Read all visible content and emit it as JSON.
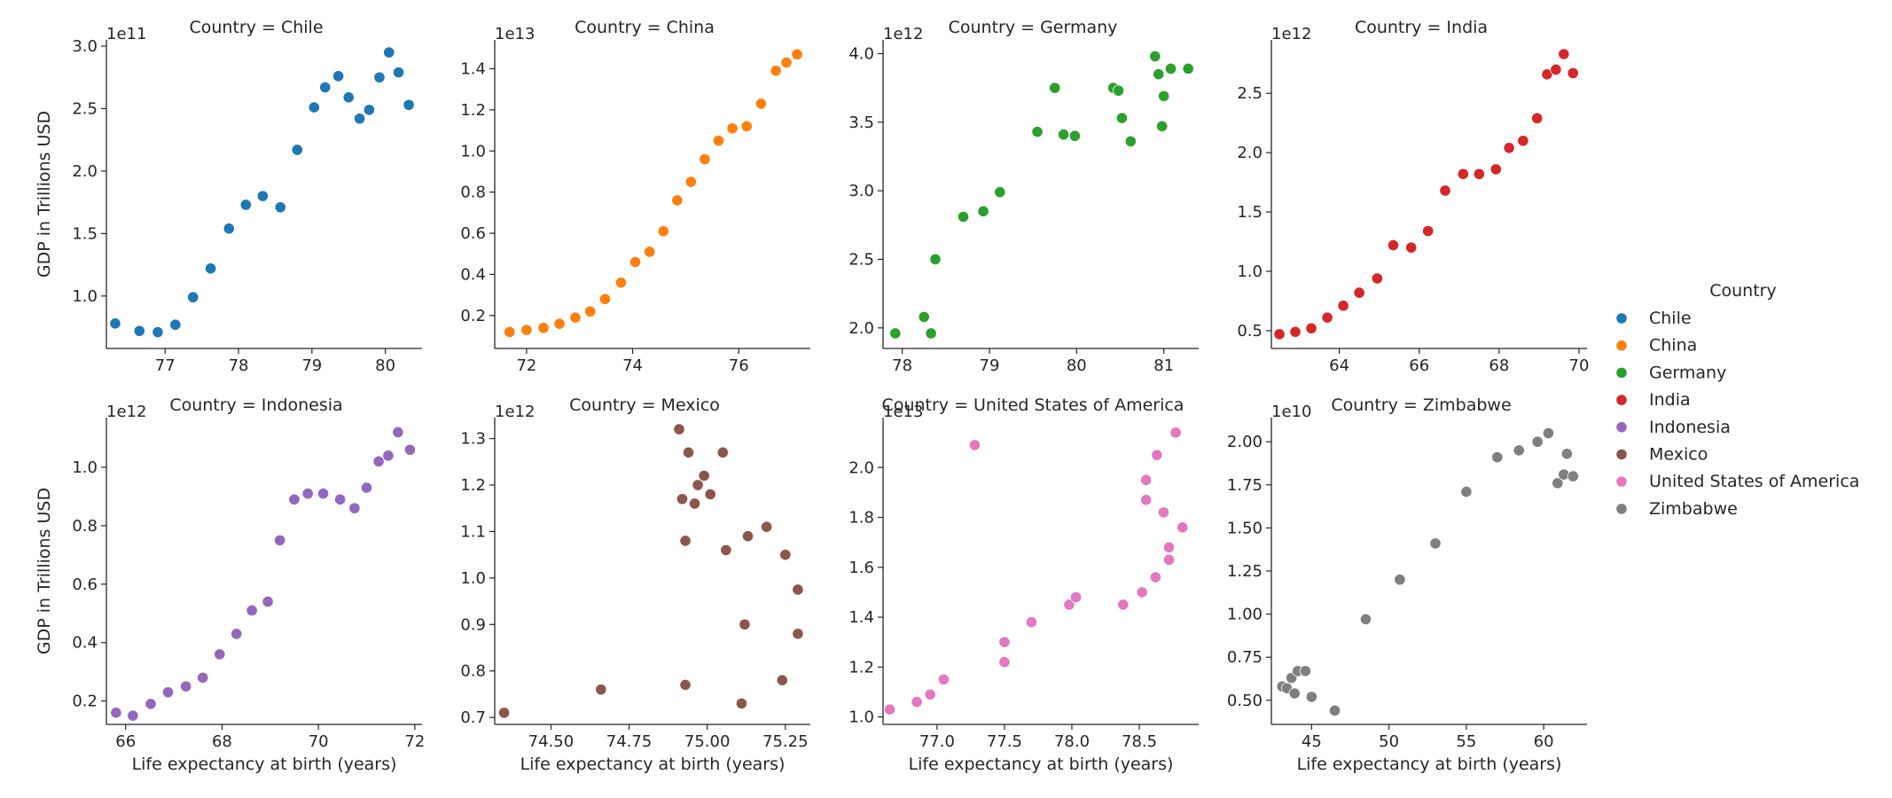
{
  "chart_data": {
    "type": "scatter",
    "xlabel": "Life expectancy at birth (years)",
    "ylabel": "GDP in Trillions USD",
    "legend": {
      "title": "Country",
      "placement": "right",
      "entries": [
        "Chile",
        "China",
        "Germany",
        "India",
        "Indonesia",
        "Mexico",
        "United States of America",
        "Zimbabwe"
      ]
    },
    "grid": false,
    "panels": [
      {
        "title": "Country = Chile",
        "color": "#1f77b4",
        "offset": "1e11",
        "xlim": [
          76.2,
          80.5
        ],
        "ylim": [
          0.58,
          3.05
        ],
        "xticks": [
          77,
          78,
          79,
          80
        ],
        "xtick_labels": [
          "77",
          "78",
          "79",
          "80"
        ],
        "yticks": [
          1.0,
          1.5,
          2.0,
          2.5,
          3.0
        ],
        "ytick_labels": [
          "1.0",
          "1.5",
          "2.0",
          "2.5",
          "3.0"
        ],
        "x": [
          76.32,
          76.65,
          76.9,
          77.14,
          77.38,
          77.62,
          77.87,
          78.1,
          78.33,
          78.57,
          78.8,
          79.03,
          79.18,
          79.36,
          79.5,
          79.65,
          79.78,
          79.92,
          80.05,
          80.18,
          80.32
        ],
        "y": [
          0.78,
          0.72,
          0.71,
          0.77,
          0.99,
          1.22,
          1.54,
          1.73,
          1.8,
          1.71,
          2.17,
          2.51,
          2.67,
          2.76,
          2.59,
          2.42,
          2.49,
          2.75,
          2.95,
          2.79,
          2.53
        ]
      },
      {
        "title": "Country = China",
        "color": "#ff7f0e",
        "offset": "1e13",
        "xlim": [
          71.4,
          77.35
        ],
        "ylim": [
          0.04,
          1.54
        ],
        "xticks": [
          72,
          74,
          76
        ],
        "xtick_labels": [
          "72",
          "74",
          "76"
        ],
        "yticks": [
          0.2,
          0.4,
          0.6,
          0.8,
          1.0,
          1.2,
          1.4
        ],
        "ytick_labels": [
          "0.2",
          "0.4",
          "0.6",
          "0.8",
          "1.0",
          "1.2",
          "1.4"
        ],
        "x": [
          71.68,
          72.0,
          72.32,
          72.62,
          72.92,
          73.2,
          73.48,
          73.78,
          74.05,
          74.32,
          74.58,
          74.84,
          75.1,
          75.36,
          75.62,
          75.88,
          76.15,
          76.42,
          76.7,
          76.9,
          77.1
        ],
        "y": [
          0.12,
          0.13,
          0.14,
          0.16,
          0.19,
          0.22,
          0.28,
          0.36,
          0.46,
          0.51,
          0.61,
          0.76,
          0.85,
          0.96,
          1.05,
          1.11,
          1.12,
          1.23,
          1.39,
          1.43,
          1.47
        ]
      },
      {
        "title": "Country = Germany",
        "color": "#2ca02c",
        "offset": "1e12",
        "xlim": [
          77.78,
          81.4
        ],
        "ylim": [
          1.85,
          4.1
        ],
        "xticks": [
          78,
          79,
          80,
          81
        ],
        "xtick_labels": [
          "78",
          "79",
          "80",
          "81"
        ],
        "yticks": [
          2.0,
          2.5,
          3.0,
          3.5,
          4.0
        ],
        "ytick_labels": [
          "2.0",
          "2.5",
          "3.0",
          "3.5",
          "4.0"
        ],
        "x": [
          77.92,
          78.25,
          78.33,
          78.38,
          78.7,
          78.93,
          79.12,
          79.55,
          79.75,
          79.85,
          79.98,
          80.42,
          80.48,
          80.52,
          80.62,
          80.9,
          80.94,
          80.98,
          81.0,
          81.08,
          81.28
        ],
        "y": [
          1.96,
          2.08,
          1.96,
          2.5,
          2.81,
          2.85,
          2.99,
          3.43,
          3.75,
          3.41,
          3.4,
          3.75,
          3.73,
          3.53,
          3.36,
          3.98,
          3.85,
          3.47,
          3.69,
          3.89,
          3.89
        ]
      },
      {
        "title": "Country = India",
        "color": "#d62728",
        "offset": "1e12",
        "xlim": [
          62.3,
          70.2
        ],
        "ylim": [
          0.35,
          2.95
        ],
        "xticks": [
          64,
          66,
          68,
          70
        ],
        "xtick_labels": [
          "64",
          "66",
          "68",
          "70"
        ],
        "yticks": [
          0.5,
          1.0,
          1.5,
          2.0,
          2.5
        ],
        "ytick_labels": [
          "0.5",
          "1.0",
          "1.5",
          "2.0",
          "2.5"
        ],
        "x": [
          62.5,
          62.9,
          63.3,
          63.7,
          64.1,
          64.5,
          64.95,
          65.35,
          65.8,
          66.22,
          66.65,
          67.1,
          67.5,
          67.92,
          68.25,
          68.6,
          68.95,
          69.2,
          69.42,
          69.62,
          69.85
        ],
        "y": [
          0.47,
          0.49,
          0.52,
          0.61,
          0.71,
          0.82,
          0.94,
          1.22,
          1.2,
          1.34,
          1.68,
          1.82,
          1.82,
          1.86,
          2.04,
          2.1,
          2.29,
          2.66,
          2.7,
          2.83,
          2.67
        ]
      },
      {
        "title": "Country = Indonesia",
        "color": "#9467bd",
        "offset": "1e12",
        "xlim": [
          65.6,
          72.15
        ],
        "ylim": [
          0.12,
          1.17
        ],
        "xticks": [
          66,
          68,
          70,
          72
        ],
        "xtick_labels": [
          "66",
          "68",
          "70",
          "72"
        ],
        "yticks": [
          0.2,
          0.4,
          0.6,
          0.8,
          1.0
        ],
        "ytick_labels": [
          "0.2",
          "0.4",
          "0.6",
          "0.8",
          "1.0"
        ],
        "x": [
          65.8,
          66.15,
          66.52,
          66.88,
          67.25,
          67.6,
          67.95,
          68.3,
          68.62,
          68.95,
          69.2,
          69.5,
          69.78,
          70.1,
          70.45,
          70.75,
          71.0,
          71.25,
          71.45,
          71.65,
          71.9
        ],
        "y": [
          0.16,
          0.15,
          0.19,
          0.23,
          0.25,
          0.28,
          0.36,
          0.43,
          0.51,
          0.54,
          0.75,
          0.89,
          0.91,
          0.91,
          0.89,
          0.86,
          0.93,
          1.02,
          1.04,
          1.12,
          1.06
        ]
      },
      {
        "title": "Country = Mexico",
        "color": "#8c564b",
        "offset": "1e12",
        "xlim": [
          74.32,
          75.33
        ],
        "ylim": [
          0.685,
          1.345
        ],
        "xticks": [
          74.5,
          74.75,
          75.0,
          75.25
        ],
        "xtick_labels": [
          "74.50",
          "74.75",
          "75.00",
          "75.25"
        ],
        "yticks": [
          0.7,
          0.8,
          0.9,
          1.0,
          1.1,
          1.2,
          1.3
        ],
        "ytick_labels": [
          "0.7",
          "0.8",
          "0.9",
          "1.0",
          "1.1",
          "1.2",
          "1.3"
        ],
        "x": [
          74.35,
          74.66,
          74.91,
          74.92,
          74.93,
          74.93,
          74.94,
          74.96,
          74.97,
          74.99,
          75.01,
          75.05,
          75.06,
          75.11,
          75.12,
          75.13,
          75.19,
          75.24,
          75.25,
          75.29,
          75.29
        ],
        "y": [
          0.71,
          0.76,
          1.32,
          1.17,
          1.08,
          0.77,
          1.27,
          1.16,
          1.2,
          1.22,
          1.18,
          1.27,
          1.06,
          0.73,
          0.9,
          1.09,
          1.11,
          0.78,
          1.05,
          0.975,
          0.88
        ]
      },
      {
        "title": "Country = United States of America",
        "color": "#e377c2",
        "offset": "1e13",
        "xlim": [
          76.6,
          78.94
        ],
        "ylim": [
          0.97,
          2.2
        ],
        "xticks": [
          77.0,
          77.5,
          78.0,
          78.5
        ],
        "xtick_labels": [
          "77.0",
          "77.5",
          "78.0",
          "78.5"
        ],
        "yticks": [
          1.0,
          1.2,
          1.4,
          1.6,
          1.8,
          2.0
        ],
        "ytick_labels": [
          "1.0",
          "1.2",
          "1.4",
          "1.6",
          "1.8",
          "2.0"
        ],
        "x": [
          76.65,
          76.85,
          76.95,
          77.05,
          77.28,
          77.5,
          77.5,
          77.7,
          77.98,
          78.03,
          78.38,
          78.52,
          78.55,
          78.55,
          78.62,
          78.63,
          78.68,
          78.72,
          78.72,
          78.77,
          78.82
        ],
        "y": [
          1.03,
          1.06,
          1.09,
          1.15,
          2.09,
          1.3,
          1.22,
          1.38,
          1.45,
          1.48,
          1.45,
          1.5,
          1.95,
          1.87,
          1.56,
          2.05,
          1.82,
          1.68,
          1.63,
          2.14,
          1.76
        ]
      },
      {
        "title": "Country = Zimbabwe",
        "color": "#7f7f7f",
        "offset": "1e10",
        "xlim": [
          42.4,
          62.8
        ],
        "ylim": [
          0.36,
          2.14
        ],
        "xticks": [
          45,
          50,
          55,
          60
        ],
        "xtick_labels": [
          "45",
          "50",
          "55",
          "60"
        ],
        "yticks": [
          0.5,
          0.75,
          1.0,
          1.25,
          1.5,
          1.75,
          2.0
        ],
        "ytick_labels": [
          "0.50",
          "0.75",
          "1.00",
          "1.25",
          "1.50",
          "1.75",
          "2.00"
        ],
        "x": [
          43.1,
          43.4,
          43.7,
          43.9,
          44.1,
          44.6,
          45.0,
          46.5,
          48.5,
          50.7,
          53.0,
          55.0,
          57.0,
          58.4,
          59.6,
          60.3,
          60.9,
          61.3,
          61.5,
          61.9
        ],
        "y": [
          0.58,
          0.57,
          0.63,
          0.54,
          0.67,
          0.67,
          0.52,
          0.44,
          0.97,
          1.2,
          1.41,
          1.71,
          1.91,
          1.95,
          2.0,
          2.05,
          1.76,
          1.81,
          1.93,
          1.8
        ]
      }
    ]
  }
}
